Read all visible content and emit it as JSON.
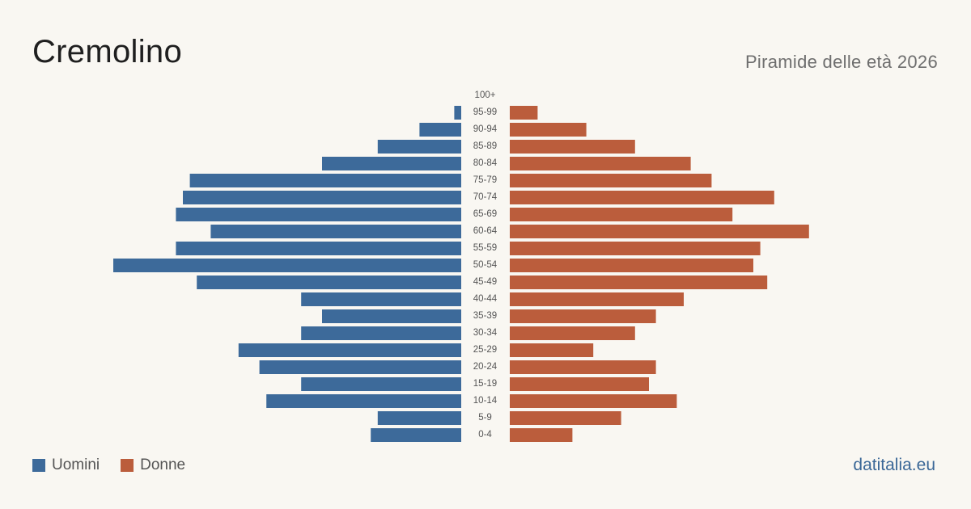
{
  "header": {
    "title": "Cremolino",
    "subtitle": "Piramide delle età 2026"
  },
  "footer": {
    "brand": "datitalia.eu"
  },
  "colors": {
    "men": "#3d6a9a",
    "women": "#bb5d3c",
    "age_label": "#555555"
  },
  "chart_data": {
    "type": "bar",
    "orientation": "population-pyramid",
    "categories": [
      "100+",
      "95-99",
      "90-94",
      "85-89",
      "80-84",
      "75-79",
      "70-74",
      "65-69",
      "60-64",
      "55-59",
      "50-54",
      "45-49",
      "40-44",
      "35-39",
      "30-34",
      "25-29",
      "20-24",
      "15-19",
      "10-14",
      "5-9",
      "0-4"
    ],
    "series": [
      {
        "name": "Uomini",
        "values": [
          0,
          1,
          6,
          12,
          20,
          39,
          40,
          41,
          36,
          41,
          50,
          38,
          23,
          20,
          23,
          32,
          29,
          23,
          28,
          12,
          13
        ]
      },
      {
        "name": "Donne",
        "values": [
          0,
          4,
          11,
          18,
          26,
          29,
          38,
          32,
          43,
          36,
          35,
          37,
          25,
          21,
          18,
          12,
          21,
          20,
          24,
          16,
          9
        ]
      }
    ],
    "legend": "bottom-left",
    "grid": false
  }
}
